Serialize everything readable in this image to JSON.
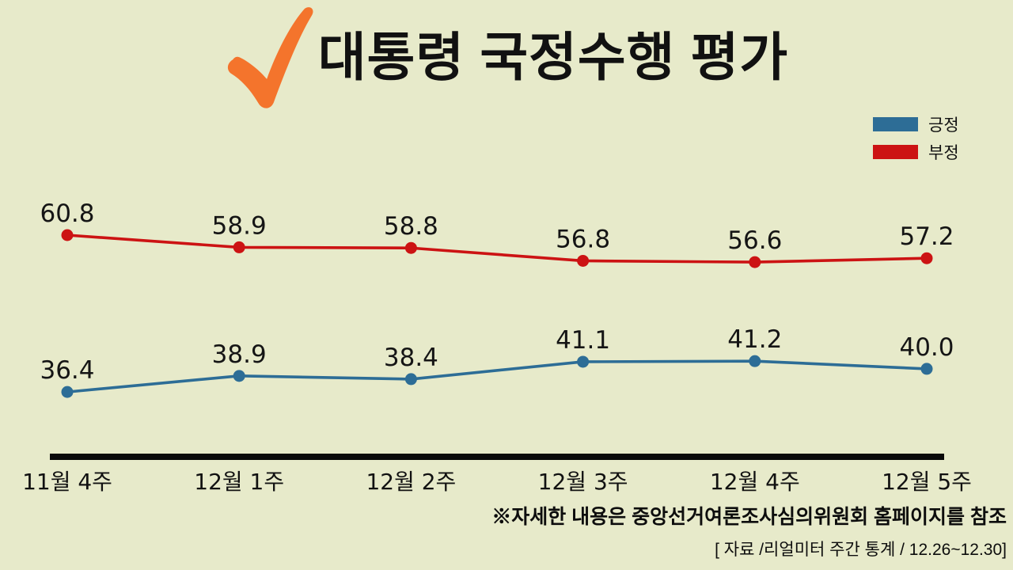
{
  "title": {
    "text": "대통령 국정수행 평가"
  },
  "legend": [
    {
      "label": "긍정",
      "color": "#2d6d96"
    },
    {
      "label": "부정",
      "color": "#cc1313"
    }
  ],
  "chart_data": {
    "type": "line",
    "categories": [
      "11월 4주",
      "12월 1주",
      "12월 2주",
      "12월 3주",
      "12월 4주",
      "12월 5주"
    ],
    "series": [
      {
        "name": "부정",
        "key": "negative",
        "color": "#cc1313",
        "values": [
          60.8,
          58.9,
          58.8,
          56.8,
          56.6,
          57.2
        ]
      },
      {
        "name": "긍정",
        "key": "positive",
        "color": "#2d6d96",
        "values": [
          36.4,
          38.9,
          38.4,
          41.1,
          41.2,
          40.0
        ]
      }
    ],
    "title": "대통령 국정수행 평가",
    "xlabel": "",
    "ylabel": "",
    "ylim": [
      30,
      65
    ],
    "grid": false,
    "legend_position": "top-right",
    "data_labels": true
  },
  "footnote": {
    "line1": "※자세한 내용은 중앙선거여론조사심의위원회 홈페이지를 참조",
    "line2": "[ 자료 /리얼미터 주간 통계 / 12.26~12.30]"
  },
  "colors": {
    "background": "#e7eaca",
    "positive": "#2d6d96",
    "negative": "#cc1313",
    "check": "#f4742c",
    "text": "#111111",
    "axis": "#0a0a0a"
  }
}
